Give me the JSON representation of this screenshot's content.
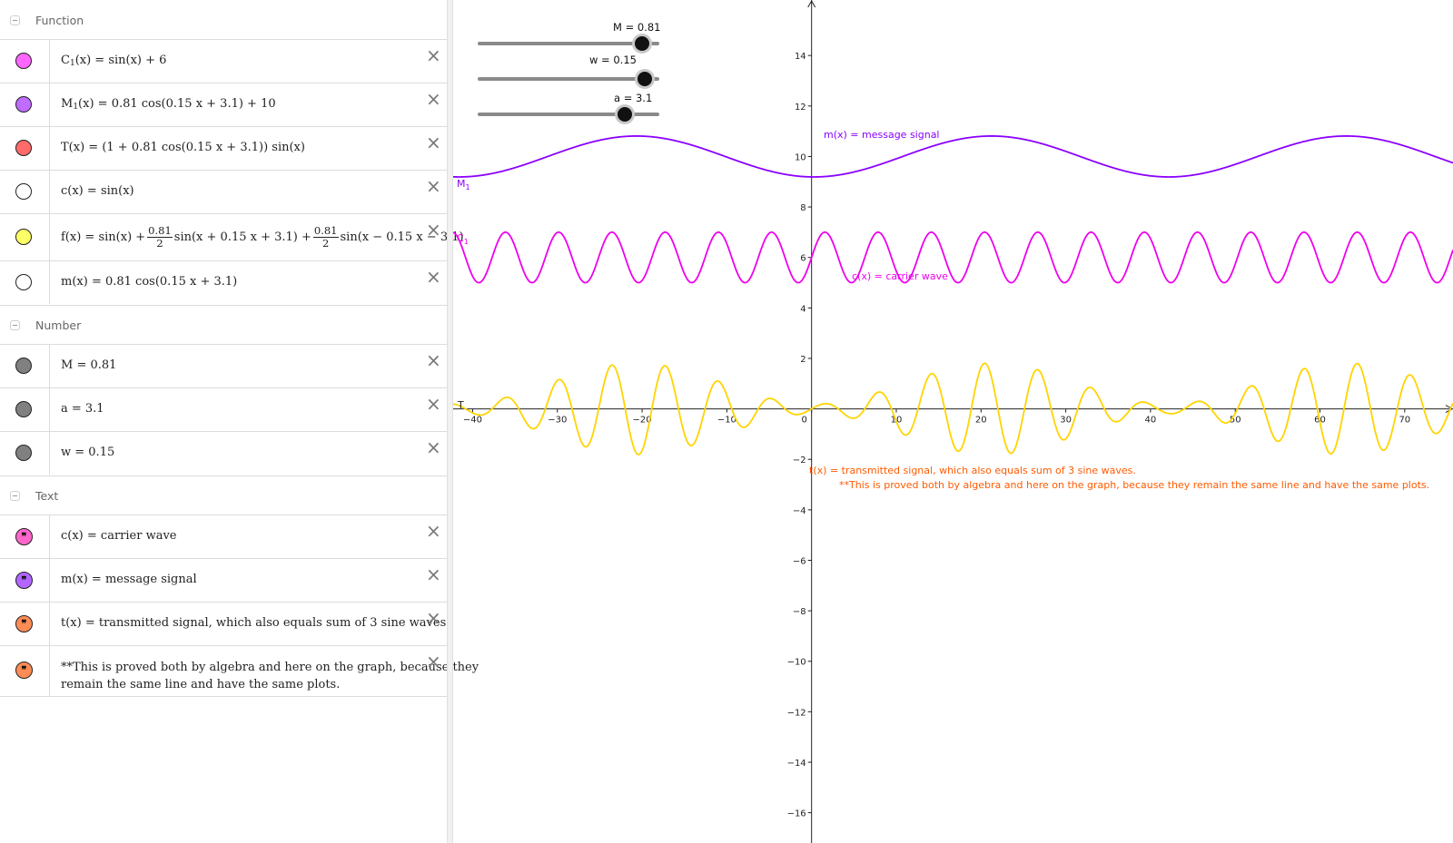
{
  "algebra": {
    "categories": {
      "function": "Function",
      "number": "Number",
      "text": "Text"
    },
    "functions": [
      {
        "name": "C",
        "sub": "1",
        "rhs": "sin(x) + 6",
        "color": "#ff66ff"
      },
      {
        "name": "M",
        "sub": "1",
        "rhs": "0.81  cos(0.15 x + 3.1) + 10",
        "color": "#bf6cff"
      },
      {
        "name": "T(x)",
        "rhs": "(1 + 0.81  cos(0.15 x + 3.1))  sin(x)",
        "color": "#ff6b6b"
      },
      {
        "name": "c(x)",
        "rhs": "sin(x)",
        "color": "#ffffff"
      },
      {
        "name": "f(x)",
        "part1": "sin(x) +",
        "frac_num": "0.81",
        "frac_den": "2",
        "part2": "sin(x + 0.15 x + 3.1) +",
        "part3": "sin(x − 0.15 x − 3.1)",
        "color": "#ffff66"
      },
      {
        "name": "m(x)",
        "rhs": "0.81  cos(0.15 x + 3.1)",
        "color": "#ffffff"
      }
    ],
    "numbers": [
      {
        "text": "M = 0.81",
        "color": "#808080"
      },
      {
        "text": "a = 3.1",
        "color": "#808080"
      },
      {
        "text": "w = 0.15",
        "color": "#808080"
      }
    ],
    "texts": [
      {
        "text": "c(x) = carrier wave",
        "color": "#ff66cc"
      },
      {
        "text": "m(x) = message signal",
        "color": "#b266ff"
      },
      {
        "text": "t(x) = transmitted signal, which also equals sum of 3 sine waves.",
        "color": "#ff8c55"
      },
      {
        "line1": "**This is proved both  by algebra and here on the graph, because they",
        "line2": "remain the same line and have the same plots.",
        "color": "#ff8c55"
      }
    ]
  },
  "sliders": [
    {
      "label": "M = 0.81",
      "value": 0.81,
      "min": -1,
      "max": 1
    },
    {
      "label": "w = 0.15",
      "value": 0.15,
      "min": -1,
      "max": 0.25
    },
    {
      "label": "a = 3.1",
      "value": 3.1,
      "min": -5,
      "max": 5
    }
  ],
  "graph": {
    "x_range": [
      -42.3,
      75.7
    ],
    "y_range": [
      -17.2,
      16.2
    ],
    "x_ticks": [
      -40,
      -30,
      -20,
      -10,
      0,
      10,
      20,
      30,
      40,
      50,
      60,
      70
    ],
    "y_ticks": [
      -16,
      -14,
      -12,
      -10,
      -8,
      -6,
      -4,
      -2,
      2,
      4,
      6,
      8,
      10,
      12,
      14
    ],
    "curve_labels": {
      "M1": "M",
      "M1_sub": "1",
      "C1": "C",
      "C1_sub": "1",
      "T": "T"
    },
    "annotations": {
      "message": "m(x) = message signal",
      "carrier": "c(x) = carrier wave",
      "transmitted": "t(x) = transmitted signal, which also equals sum of 3 sine waves.",
      "proof": "**This is proved both  by algebra and here on the graph, because they remain the same line and have the same plots."
    },
    "colors": {
      "M1": "#8b00ff",
      "C1": "#ee00ee",
      "T": "#ffd400",
      "annotation": "#ff5a00"
    }
  },
  "chart_data": {
    "type": "line",
    "params": {
      "M": 0.81,
      "w": 0.15,
      "a": 3.1
    },
    "series": [
      {
        "name": "M1(x) = 0.81 cos(0.15 x + 3.1) + 10"
      },
      {
        "name": "C1(x) = sin(x) + 6"
      },
      {
        "name": "T(x) = (1 + 0.81 cos(0.15 x + 3.1)) sin(x)"
      }
    ]
  }
}
